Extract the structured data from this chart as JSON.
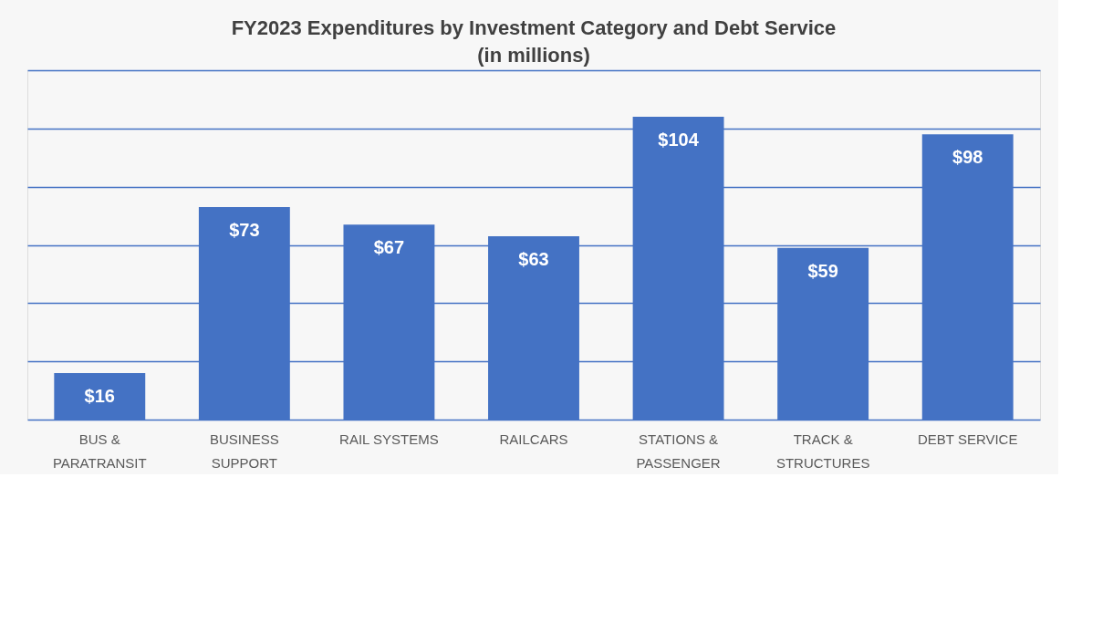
{
  "chart_data": {
    "type": "bar",
    "title": "FY2023 Expenditures by Investment Category and Debt Service",
    "subtitle": "(in millions)",
    "categories": [
      "BUS &\nPARATRANSIT",
      "BUSINESS\nSUPPORT",
      "RAIL SYSTEMS",
      "RAILCARS",
      "STATIONS &\nPASSENGER",
      "TRACK &\nSTRUCTURES",
      "DEBT SERVICE"
    ],
    "values": [
      16,
      73,
      67,
      63,
      104,
      59,
      98
    ],
    "value_labels": [
      "$16",
      "$73",
      "$67",
      "$63",
      "$104",
      "$59",
      "$98"
    ],
    "color": "#4472c4",
    "ylim": [
      0,
      120
    ],
    "yticks": [
      {
        "value": 0,
        "label": null
      },
      {
        "value": 20,
        "label": null
      },
      {
        "value": 40,
        "label": null
      },
      {
        "value": 60,
        "label": null
      },
      {
        "value": 80,
        "label": null
      },
      {
        "value": 100,
        "label": null
      },
      {
        "value": 120,
        "label": null
      }
    ],
    "grid": "y",
    "tick_labels": "x"
  }
}
